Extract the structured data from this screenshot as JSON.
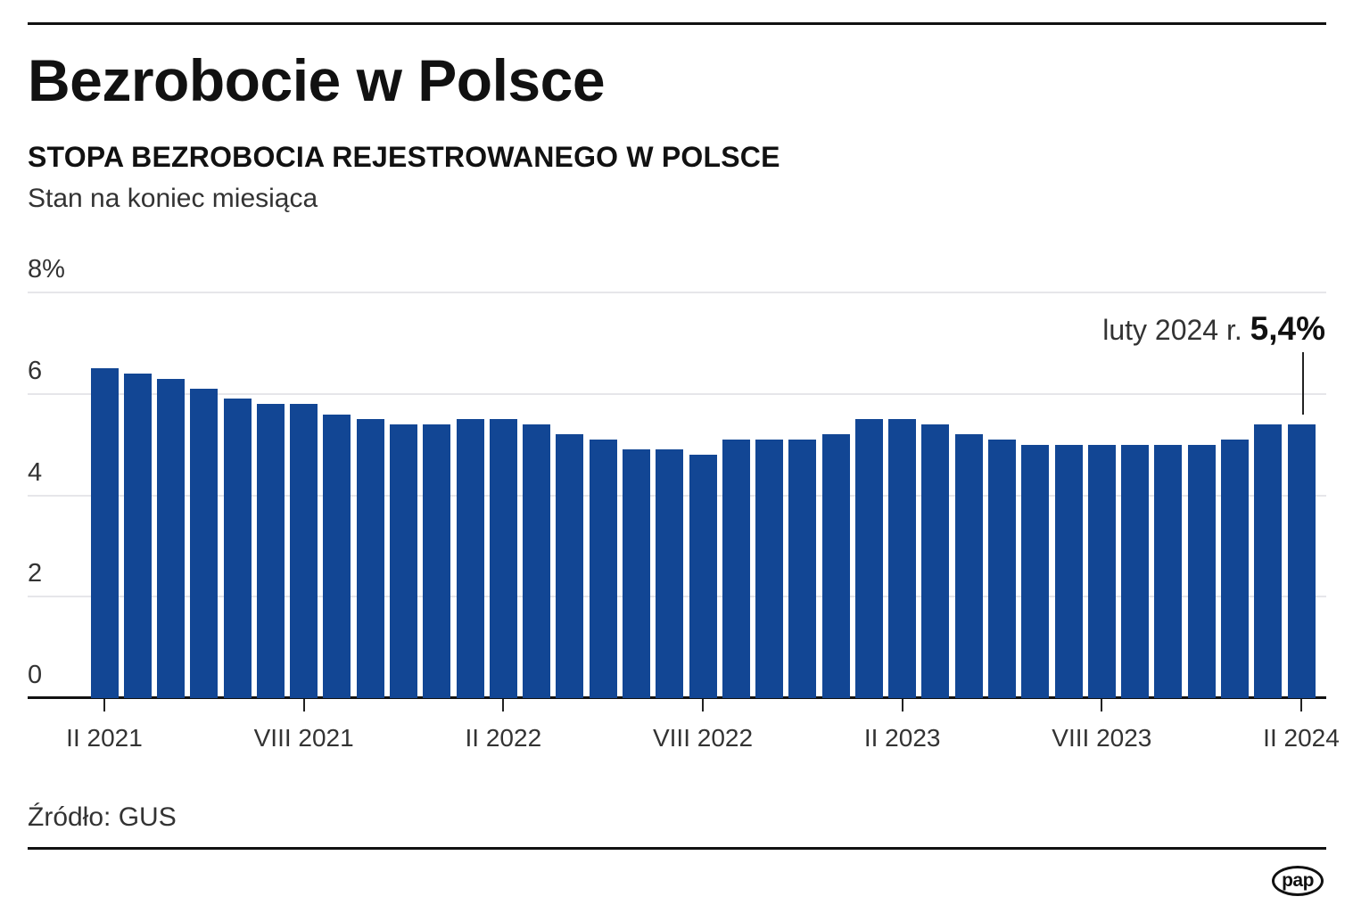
{
  "header": {
    "title": "Bezrobocie w Polsce",
    "subtitle": "STOPA BEZROBOCIA REJESTROWANEGO W POLSCE",
    "note": "Stan na koniec miesiąca"
  },
  "annotation": {
    "label": "luty 2024 r.",
    "value": "5,4%"
  },
  "footer": {
    "source": "Źródło: GUS",
    "logo": "pap"
  },
  "colors": {
    "bar": "#124694",
    "grid": "#e6e6ea",
    "axis": "#111111"
  },
  "chart_data": {
    "type": "bar",
    "title": "Bezrobocie w Polsce",
    "subtitle": "STOPA BEZROBOCIA REJESTROWANEGO W POLSCE",
    "xlabel": "",
    "ylabel": "%",
    "ylim": [
      0,
      8
    ],
    "y_ticks": [
      "0",
      "2",
      "4",
      "6",
      "8%"
    ],
    "y_tick_values": [
      0,
      2,
      4,
      6,
      8
    ],
    "grid": true,
    "legend": null,
    "x_tick_labels": [
      "II 2021",
      "VIII 2021",
      "II 2022",
      "VIII 2022",
      "II 2023",
      "VIII 2023",
      "II 2024"
    ],
    "x_tick_indices": [
      0,
      6,
      12,
      18,
      24,
      30,
      36
    ],
    "categories": [
      "II 2021",
      "III 2021",
      "IV 2021",
      "V 2021",
      "VI 2021",
      "VII 2021",
      "VIII 2021",
      "IX 2021",
      "X 2021",
      "XI 2021",
      "XII 2021",
      "I 2022",
      "II 2022",
      "III 2022",
      "IV 2022",
      "V 2022",
      "VI 2022",
      "VII 2022",
      "VIII 2022",
      "IX 2022",
      "X 2022",
      "XI 2022",
      "XII 2022",
      "I 2023",
      "II 2023",
      "III 2023",
      "IV 2023",
      "V 2023",
      "VI 2023",
      "VII 2023",
      "VIII 2023",
      "IX 2023",
      "X 2023",
      "XI 2023",
      "XII 2023",
      "I 2024",
      "II 2024"
    ],
    "values": [
      6.5,
      6.4,
      6.3,
      6.1,
      5.9,
      5.8,
      5.8,
      5.6,
      5.5,
      5.4,
      5.4,
      5.5,
      5.5,
      5.4,
      5.2,
      5.1,
      4.9,
      4.9,
      4.8,
      5.1,
      5.1,
      5.1,
      5.2,
      5.5,
      5.5,
      5.4,
      5.2,
      5.1,
      5.0,
      5.0,
      5.0,
      5.0,
      5.0,
      5.0,
      5.1,
      5.4,
      5.4
    ],
    "annotations": [
      {
        "index": 36,
        "text": "luty 2024 r. 5,4%"
      }
    ],
    "source": "Źródło: GUS"
  }
}
